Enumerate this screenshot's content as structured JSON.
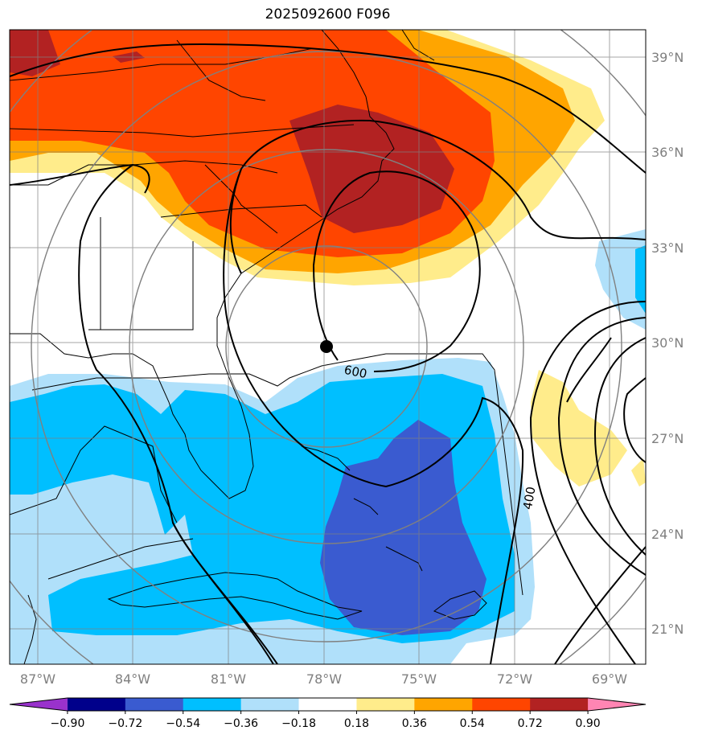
{
  "map": {
    "title": "2025092600 F096",
    "projection": "lat-lon",
    "extent": {
      "lon_min": -88.0,
      "lon_max": -68.0,
      "lat_min": 20.0,
      "lat_max": 40.0
    },
    "lat_labels": [
      "39°N",
      "36°N",
      "33°N",
      "30°N",
      "27°N",
      "24°N",
      "21°N"
    ],
    "lon_labels": [
      "87°W",
      "84°W",
      "81°W",
      "78°W",
      "75°W",
      "72°W",
      "69°W"
    ],
    "center_marker": {
      "lon": -78.0,
      "lat": 29.8
    },
    "contour_labels": [
      "600",
      "400"
    ],
    "colors": {
      "grid": "#808080",
      "range_rings": "#808080",
      "contours": "#000000",
      "coastline": "#000000"
    }
  },
  "colorbar": {
    "tick_labels": [
      "−0.90",
      "−0.72",
      "−0.54",
      "−0.36",
      "−0.18",
      "0.18",
      "0.36",
      "0.54",
      "0.72",
      "0.90"
    ],
    "bins": [
      "#9932cc",
      "#00008b",
      "#3a5bd0",
      "#00bfff",
      "#b0e0fa",
      "#ffffff",
      "#ffec8b",
      "#ffa500",
      "#ff4500",
      "#b22222",
      "#ff85b3"
    ]
  }
}
